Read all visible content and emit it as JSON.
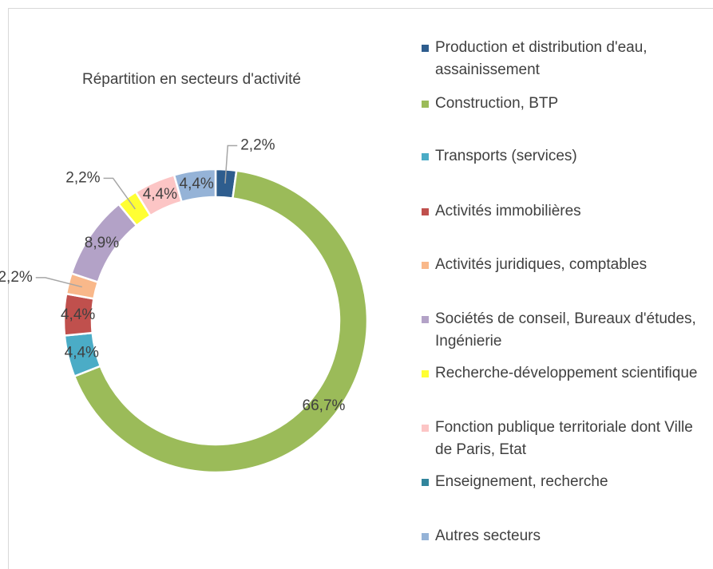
{
  "chart_data": {
    "type": "donut",
    "title": "Répartition en secteurs d'activité",
    "categories": [
      "Production et distribution d'eau, assainissement",
      "Construction, BTP",
      "Transports (services)",
      "Activités immobilières",
      "Activités juridiques, comptables",
      "Sociétés de conseil, Bureaux d'études, Ingénierie",
      "Recherche-développement scientifique",
      "Fonction publique territoriale dont Ville de Paris, Etat",
      "Enseignement, recherche",
      "Autres secteurs"
    ],
    "values": [
      2.2,
      66.7,
      4.4,
      4.4,
      2.2,
      8.9,
      2.2,
      4.4,
      0,
      4.4
    ],
    "value_labels": [
      "2,2%",
      "66,7%",
      "4,4%",
      "4,4%",
      "2,2%",
      "8,9%",
      "2,2%",
      "4,4%",
      null,
      "4,4%"
    ],
    "colors": [
      "#2e5d8e",
      "#9bbb59",
      "#4bacc6",
      "#c0504d",
      "#f9b88a",
      "#b3a2c7",
      "#ffff33",
      "#fcc5c5",
      "#31859c",
      "#95b3d7"
    ],
    "legend": "right"
  }
}
